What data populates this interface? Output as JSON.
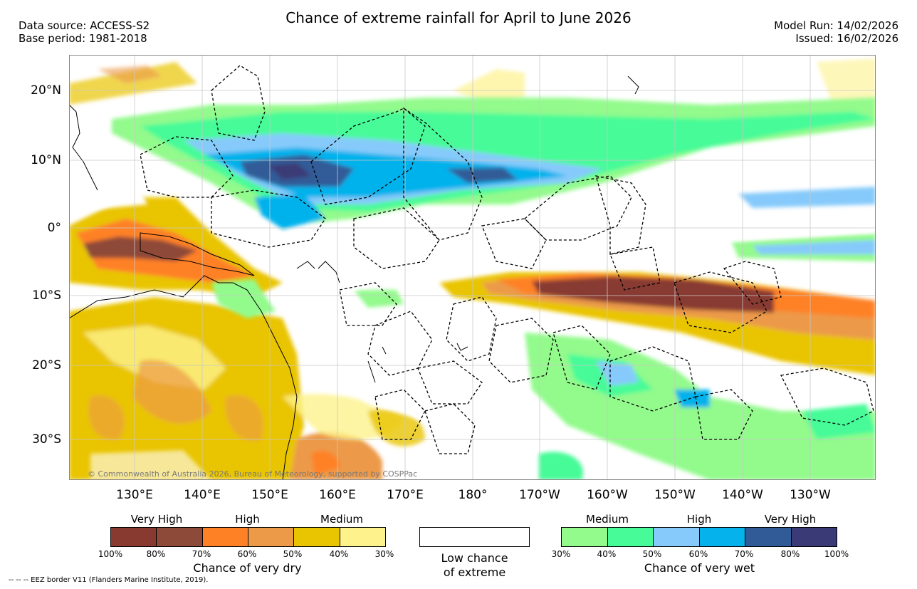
{
  "title": "Chance of extreme rainfall for April to June 2026",
  "header_left": {
    "data_source": "Data source: ACCESS-S2",
    "base_period": "Base period: 1981-2018"
  },
  "header_right": {
    "model_run": "Model Run: 14/02/2026",
    "issued": "Issued: 16/02/2026"
  },
  "map": {
    "lat_labels": [
      "20°N",
      "10°N",
      "0°",
      "10°S",
      "20°S",
      "30°S"
    ],
    "lon_labels": [
      "130°E",
      "140°E",
      "150°E",
      "160°E",
      "170°E",
      "180°",
      "170°W",
      "160°W",
      "150°W",
      "140°W",
      "130°W"
    ],
    "copyright": "© Commonwealth of Australia 2026, Bureau of Meteorology, supported by COSPPac"
  },
  "legend": {
    "dry": {
      "headings": [
        "Very High",
        "High",
        "Medium"
      ],
      "colors": [
        "#883a30",
        "#8e4a38",
        "#ff8126",
        "#ec9a48",
        "#e9c400",
        "#fdf28c"
      ],
      "ticks": [
        "100%",
        "80%",
        "70%",
        "60%",
        "50%",
        "40%",
        "30%"
      ],
      "caption": "Chance of very dry"
    },
    "low": {
      "caption_line1": "Low chance",
      "caption_line2": "of extreme"
    },
    "wet": {
      "headings": [
        "Medium",
        "High",
        "Very High"
      ],
      "colors": [
        "#93fa8c",
        "#46fb98",
        "#86cafb",
        "#06b2ec",
        "#305b97",
        "#3a3a76"
      ],
      "ticks": [
        "30%",
        "40%",
        "50%",
        "60%",
        "70%",
        "80%",
        "100%"
      ],
      "caption": "Chance of very wet"
    }
  },
  "eez_note": "--  --  -- EEZ border V11 (Flanders Marine Institute, 2019)."
}
